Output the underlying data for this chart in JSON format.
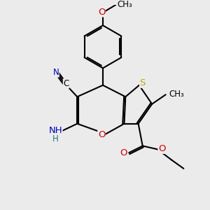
{
  "bg_color": "#ebebeb",
  "bond_color": "#000000",
  "bond_width": 1.5,
  "dbo": 0.035,
  "atom_colors": {
    "C": "#000000",
    "N": "#0000bb",
    "O": "#cc0000",
    "S": "#bbaa00",
    "H": "#227777"
  },
  "font_size": 9.5,
  "xlim": [
    -1.8,
    2.0
  ],
  "ylim": [
    -2.3,
    2.5
  ]
}
